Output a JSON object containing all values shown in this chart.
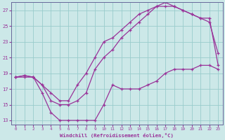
{
  "xlabel": "Windchill (Refroidissement éolien,°C)",
  "bg_color": "#cce8e8",
  "line_color": "#993399",
  "grid_color": "#99cccc",
  "x_data": [
    0,
    1,
    2,
    3,
    4,
    5,
    6,
    7,
    8,
    9,
    10,
    11,
    12,
    13,
    14,
    15,
    16,
    17,
    18,
    19,
    20,
    21,
    22,
    23
  ],
  "curve1": [
    18.5,
    18.7,
    18.5,
    17.5,
    16.5,
    15.5,
    15.5,
    17.5,
    19.0,
    21.0,
    23.0,
    23.5,
    24.5,
    25.5,
    26.5,
    27.0,
    27.5,
    27.5,
    27.5,
    27.0,
    26.5,
    26.0,
    26.0,
    20.0
  ],
  "curve2": [
    18.5,
    18.7,
    18.5,
    17.5,
    15.5,
    15.0,
    15.0,
    15.5,
    16.5,
    19.5,
    21.0,
    22.0,
    23.5,
    24.5,
    25.5,
    26.5,
    27.5,
    28.0,
    27.5,
    27.0,
    26.5,
    26.0,
    25.5,
    21.5
  ],
  "curve3": [
    18.5,
    18.5,
    18.5,
    16.5,
    14.0,
    13.0,
    13.0,
    13.0,
    13.0,
    13.0,
    15.0,
    17.5,
    17.0,
    17.0,
    17.0,
    17.5,
    18.0,
    19.0,
    19.5,
    19.5,
    19.5,
    20.0,
    20.0,
    19.5
  ],
  "xlim": [
    -0.5,
    23.5
  ],
  "ylim": [
    12.5,
    28.0
  ],
  "yticks": [
    13,
    15,
    17,
    19,
    21,
    23,
    25,
    27
  ],
  "xticks": [
    0,
    1,
    2,
    3,
    4,
    5,
    6,
    7,
    8,
    9,
    10,
    11,
    12,
    13,
    14,
    15,
    16,
    17,
    18,
    19,
    20,
    21,
    22,
    23
  ]
}
